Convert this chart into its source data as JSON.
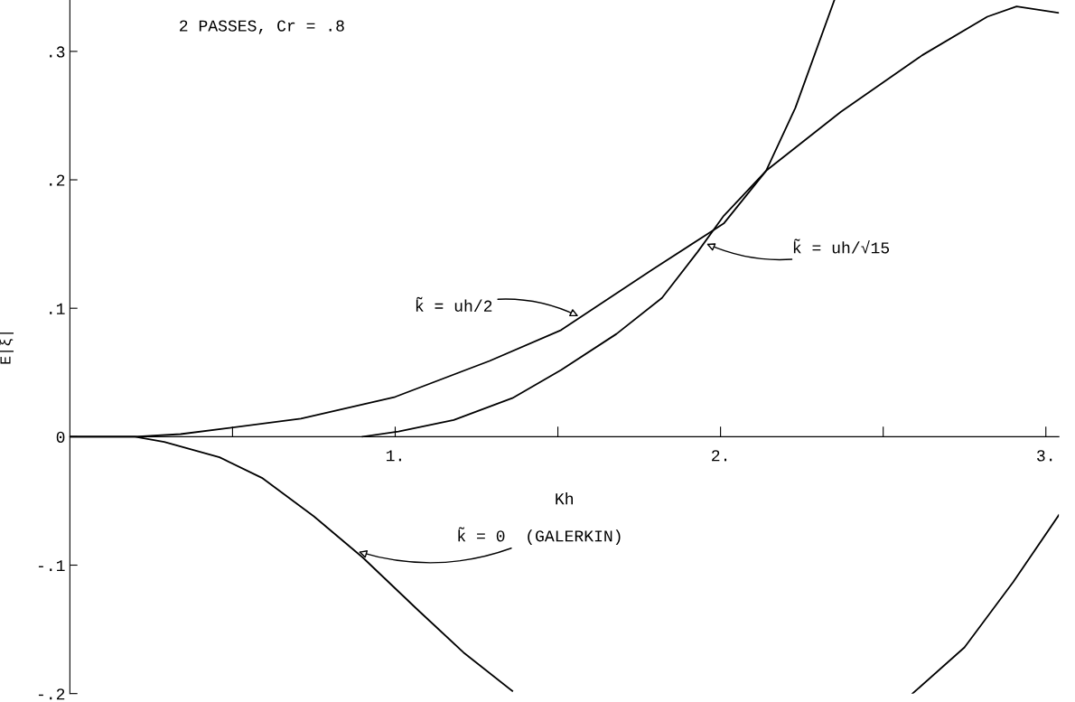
{
  "chart_data": {
    "type": "line",
    "xlabel": "Kh",
    "ylabel": "E|ξ|",
    "xlim": [
      0,
      3.04
    ],
    "ylim": [
      -0.2,
      0.34
    ],
    "xticks": [
      {
        "value": 0.5,
        "label": null
      },
      {
        "value": 1,
        "label": "1."
      },
      {
        "value": 1.5,
        "label": null
      },
      {
        "value": 2,
        "label": "2."
      },
      {
        "value": 2.5,
        "label": null
      },
      {
        "value": 3,
        "label": "3."
      }
    ],
    "yticks": [
      {
        "value": -0.2,
        "label": "-.2"
      },
      {
        "value": -0.1,
        "label": "-.1"
      },
      {
        "value": 0,
        "label": "0"
      },
      {
        "value": 0.1,
        "label": ".1"
      },
      {
        "value": 0.2,
        "label": ".2"
      },
      {
        "value": 0.3,
        "label": ".3"
      }
    ],
    "grid": false,
    "legend": false,
    "marker": "none",
    "line_style": "solid",
    "series": [
      {
        "color": "#000000",
        "x": [
          0,
          0.2,
          0.34,
          0.71,
          1.0,
          1.29,
          1.51,
          1.79,
          2.01,
          2.14,
          2.37,
          2.62,
          2.82,
          2.91,
          3.04
        ],
        "values": [
          0,
          0,
          0.002,
          0.014,
          0.031,
          0.059,
          0.083,
          0.13,
          0.166,
          0.207,
          0.253,
          0.297,
          0.327,
          0.335,
          0.33
        ]
      },
      {
        "color": "#000000",
        "x": [
          0.9,
          1.01,
          1.18,
          1.36,
          1.51,
          1.68,
          1.82,
          1.93,
          2.01,
          2.14,
          2.23,
          2.35
        ],
        "values": [
          0,
          0.004,
          0.013,
          0.03,
          0.052,
          0.08,
          0.108,
          0.144,
          0.172,
          0.207,
          0.256,
          0.34
        ]
      },
      {
        "color": "#000000",
        "x": [
          0,
          0.2,
          0.29,
          0.46,
          0.59,
          0.75,
          0.9,
          1.07,
          1.21,
          1.36,
          2.0,
          2.59,
          2.75,
          2.9,
          3.04
        ],
        "values": [
          0,
          0,
          -0.004,
          -0.016,
          -0.032,
          -0.062,
          -0.094,
          -0.135,
          -0.168,
          -0.198,
          null,
          -0.2,
          -0.164,
          -0.113,
          -0.061
        ]
      }
    ],
    "annotations": [
      "2 PASSES, Cr = .8",
      {
        "text": "k̃ = uh/2",
        "x": 1.57,
        "y": 0.093
      },
      {
        "text": "k̃ = uh/√15",
        "x": 1.95,
        "y": 0.151
      },
      {
        "text": "k̃ = 0  (GALERKIN)",
        "x": 0.88,
        "y": -0.089
      }
    ]
  }
}
